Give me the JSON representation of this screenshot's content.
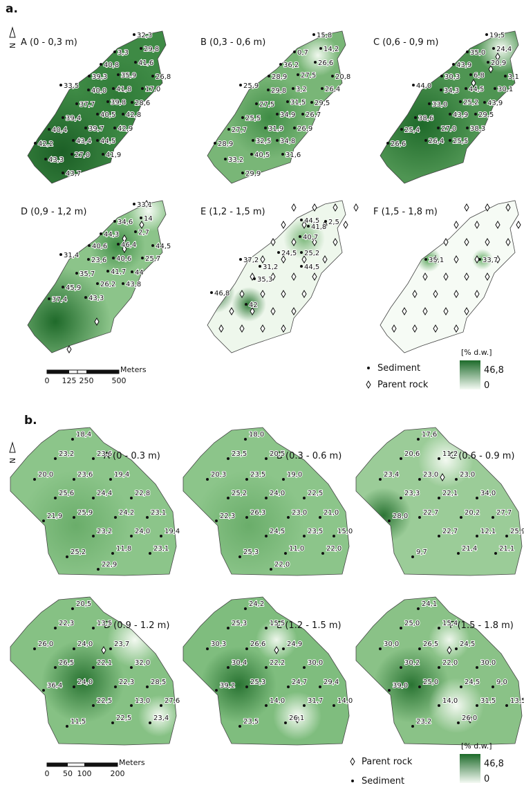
{
  "panel_a": {
    "label": "a.",
    "north": "N",
    "maps": [
      {
        "title": "A (0 - 0,3 m)",
        "points": [
          "32,3",
          "29,8",
          "3,3",
          "41,6",
          "40,8",
          "26,8",
          "39,3",
          "35,9",
          "33,5",
          "40,0",
          "41,8",
          "17,0",
          "37,7",
          "28,6",
          "39,8",
          "39,4",
          "40,5",
          "42,8",
          "40,4",
          "39,7",
          "42,9",
          "44,5",
          "43,4",
          "42,2",
          "27,0",
          "41,9",
          "43,3",
          "43,7"
        ]
      },
      {
        "title": "B (0,3 - 0,6 m)",
        "points": [
          "15,8",
          "14,2",
          "0,7",
          "26,6",
          "36,2",
          "20,8",
          "28,9",
          "27,5",
          "25,9",
          "29,8",
          "3,2",
          "26,4",
          "27,5",
          "29,5",
          "31,5",
          "25,5",
          "34,9",
          "26,7",
          "27,7",
          "31,9",
          "26,9",
          "34,8",
          "32,5",
          "28,9",
          "40,5",
          "31,6",
          "33,2",
          "29,9"
        ]
      },
      {
        "title": "C (0,6 - 0,9 m)",
        "points": [
          "19,5",
          "24,4",
          "35,0",
          "20,9",
          "43,9",
          "3,1",
          "30,3",
          "6,8",
          "44,0",
          "34,3",
          "44,5",
          "30,1",
          "33,0",
          "43,9",
          "25,2",
          "38,6",
          "43,9",
          "29,5",
          "25,4",
          "27,0",
          "38,3",
          "25,5",
          "26,4",
          "26,6"
        ]
      },
      {
        "title": "D (0,9 - 1,2 m)",
        "points": [
          "33,1",
          "14",
          "34,6",
          "2,7",
          "44,3",
          "44,5",
          "40,6",
          "46,4",
          "31,4",
          "23,6",
          "40,6",
          "25,7",
          "35,7",
          "44",
          "41,7",
          "45,9",
          "26,2",
          "43,8",
          "37,4",
          "43,3"
        ]
      },
      {
        "title": "E (1,2 - 1,5 m)",
        "points": [
          "44,5",
          "2,5",
          "41,8",
          "40,7",
          "37,2",
          "24,5",
          "25,2",
          "31,2",
          "44,5",
          "35,3",
          "46,8",
          "42"
        ]
      },
      {
        "title": "F (1,5 - 1,8 m)",
        "points": [
          "35,1",
          "33,7"
        ]
      }
    ],
    "scale": {
      "unit": "Meters",
      "ticks": [
        "0",
        "125",
        "250",
        "500"
      ]
    },
    "legend": {
      "unit": "[% d.w.]",
      "max": "46,8",
      "min": "0",
      "sediment": "Sediment",
      "parent_rock": "Parent rock"
    }
  },
  "panel_b": {
    "label": "b.",
    "north": "N",
    "maps": [
      {
        "title": "A (0 - 0.3 m)",
        "points": [
          "18,4",
          "23,2",
          "23,6",
          "20,0",
          "23,6",
          "19,4",
          "25,6",
          "24,4",
          "22,8",
          "21,9",
          "25,9",
          "24,2",
          "23,1",
          "23,2",
          "24,0",
          "19,4",
          "25,2",
          "11,8",
          "23,1",
          "22,9"
        ]
      },
      {
        "title": "B (0.3 - 0.6 m)",
        "points": [
          "18,0",
          "23,5",
          "20,5",
          "20,3",
          "23,5",
          "19,0",
          "25,2",
          "24,0",
          "22,5",
          "22,3",
          "26,3",
          "23,0",
          "21,0",
          "24,5",
          "23,5",
          "15,0",
          "25,3",
          "11,0",
          "22,0",
          "22,0"
        ]
      },
      {
        "title": "C (0.6 - 0.9 m)",
        "points": [
          "17,6",
          "20,6",
          "11,2",
          "23,4",
          "23,0",
          "23,0",
          "23,3",
          "22,1",
          "34,0",
          "28,0",
          "22,7",
          "20,2",
          "27,7",
          "22,7",
          "12,1",
          "25,9",
          "9,7",
          "21,4",
          "21,1"
        ]
      },
      {
        "title": "D (0.9 - 1.2 m)",
        "points": [
          "20,5",
          "22,3",
          "13,5",
          "26,0",
          "24,0",
          "23,7",
          "26,5",
          "22,1",
          "32,0",
          "36,4",
          "24,0",
          "22,3",
          "28,5",
          "22,5",
          "13,0",
          "27,6",
          "11,5",
          "22,5",
          "23,4"
        ]
      },
      {
        "title": "E (1.2 - 1.5 m)",
        "points": [
          "24,2",
          "25,3",
          "15,5",
          "30,3",
          "26,6",
          "24,9",
          "30,4",
          "22,2",
          "30,0",
          "39,2",
          "25,3",
          "24,7",
          "29,4",
          "14,0",
          "31,7",
          "14,0",
          "23,5",
          "26,1"
        ]
      },
      {
        "title": "F (1.5 - 1.8 m)",
        "points": [
          "24,1",
          "25,0",
          "15,4",
          "30,0",
          "26,5",
          "24,5",
          "30,2",
          "22,0",
          "30,0",
          "39,0",
          "25,0",
          "24,5",
          "9,0",
          "14,0",
          "31,5",
          "13,5",
          "23,2",
          "26,0"
        ]
      }
    ],
    "scale": {
      "unit": "Meters",
      "ticks": [
        "0",
        "50",
        "100",
        "200"
      ]
    },
    "legend": {
      "unit": "[% d.w.]",
      "max": "46,8",
      "min": "0",
      "parent_rock": "Parent rock",
      "sediment": "Sediment"
    }
  }
}
